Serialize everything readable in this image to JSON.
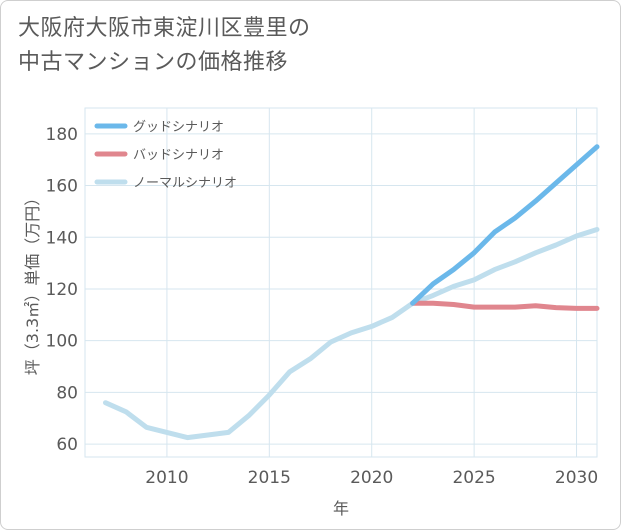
{
  "title_lines": [
    "大阪府大阪市東淀川区豊里の",
    "中古マンションの価格推移"
  ],
  "chart_data": {
    "type": "line",
    "title": "大阪府大阪市東淀川区豊里の中古マンションの価格推移",
    "xlabel": "年",
    "ylabel": "坪（3.3㎡）単価（万円）",
    "xlim": [
      2006,
      2031
    ],
    "ylim": [
      55,
      190
    ],
    "xticks": [
      2010,
      2015,
      2020,
      2025,
      2030
    ],
    "yticks": [
      60,
      80,
      100,
      120,
      140,
      160,
      180
    ],
    "grid": true,
    "legend_position": "top-left",
    "series": [
      {
        "name": "グッドシナリオ",
        "color": "#6bb8ea",
        "x": [
          2022,
          2023,
          2024,
          2025,
          2026,
          2027,
          2028,
          2029,
          2030,
          2031
        ],
        "y": [
          114.5,
          122,
          127.5,
          134,
          142,
          147.5,
          154,
          161,
          168,
          175
        ]
      },
      {
        "name": "バッドシナリオ",
        "color": "#e0868e",
        "x": [
          2022,
          2023,
          2024,
          2025,
          2026,
          2027,
          2028,
          2029,
          2030,
          2031
        ],
        "y": [
          114.5,
          114.5,
          114,
          113,
          113,
          113,
          113.5,
          112.8,
          112.5,
          112.5
        ]
      },
      {
        "name": "ノーマルシナリオ",
        "color": "#bfdeed",
        "x": [
          2007,
          2008,
          2009,
          2010,
          2011,
          2012,
          2013,
          2014,
          2015,
          2016,
          2017,
          2018,
          2019,
          2020,
          2021,
          2022,
          2023,
          2024,
          2025,
          2026,
          2027,
          2028,
          2029,
          2030,
          2031
        ],
        "y": [
          76,
          72.5,
          66.5,
          64.5,
          62.5,
          63.5,
          64.5,
          71,
          79,
          88,
          93,
          99.5,
          103,
          105.5,
          109,
          114.5,
          117.5,
          121,
          123.5,
          127.5,
          130.5,
          134,
          137,
          140.5,
          143
        ]
      }
    ]
  }
}
